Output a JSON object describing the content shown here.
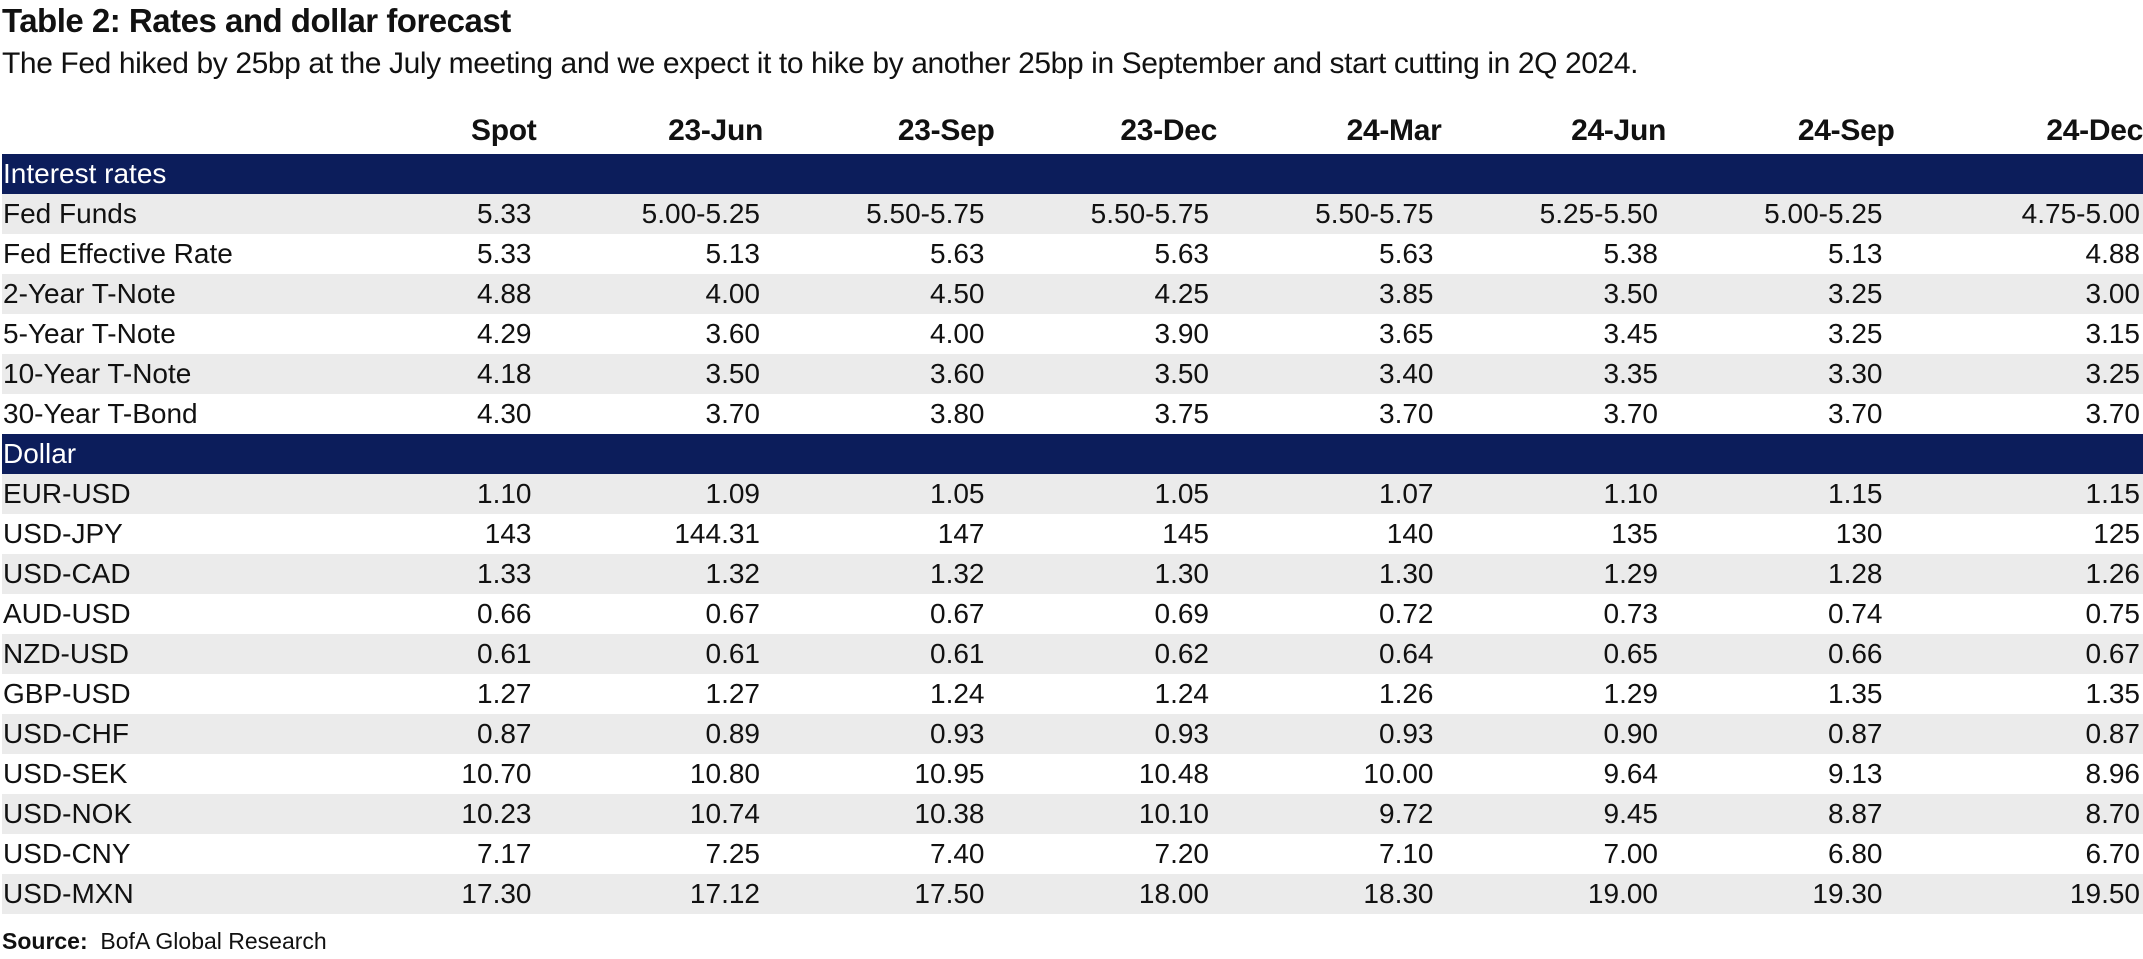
{
  "title": "Table 2: Rates and dollar forecast",
  "subtitle": "The Fed hiked by 25bp at the July meeting and we expect it to hike by another 25bp in September and start cutting in 2Q 2024.",
  "columns": [
    "Spot",
    "23-Jun",
    "23-Sep",
    "23-Dec",
    "24-Mar",
    "24-Jun",
    "24-Sep",
    "24-Dec"
  ],
  "sections": [
    {
      "name": "Interest rates",
      "rows": [
        {
          "label": "Fed Funds",
          "values": [
            "5.33",
            "5.00-5.25",
            "5.50-5.75",
            "5.50-5.75",
            "5.50-5.75",
            "5.25-5.50",
            "5.00-5.25",
            "4.75-5.00"
          ]
        },
        {
          "label": "Fed Effective Rate",
          "values": [
            "5.33",
            "5.13",
            "5.63",
            "5.63",
            "5.63",
            "5.38",
            "5.13",
            "4.88"
          ]
        },
        {
          "label": "2-Year T-Note",
          "values": [
            "4.88",
            "4.00",
            "4.50",
            "4.25",
            "3.85",
            "3.50",
            "3.25",
            "3.00"
          ]
        },
        {
          "label": "5-Year T-Note",
          "values": [
            "4.29",
            "3.60",
            "4.00",
            "3.90",
            "3.65",
            "3.45",
            "3.25",
            "3.15"
          ]
        },
        {
          "label": "10-Year T-Note",
          "values": [
            "4.18",
            "3.50",
            "3.60",
            "3.50",
            "3.40",
            "3.35",
            "3.30",
            "3.25"
          ]
        },
        {
          "label": "30-Year T-Bond",
          "values": [
            "4.30",
            "3.70",
            "3.80",
            "3.75",
            "3.70",
            "3.70",
            "3.70",
            "3.70"
          ]
        }
      ]
    },
    {
      "name": "Dollar",
      "rows": [
        {
          "label": "EUR-USD",
          "values": [
            "1.10",
            "1.09",
            "1.05",
            "1.05",
            "1.07",
            "1.10",
            "1.15",
            "1.15"
          ]
        },
        {
          "label": "USD-JPY",
          "values": [
            "143",
            "144.31",
            "147",
            "145",
            "140",
            "135",
            "130",
            "125"
          ]
        },
        {
          "label": "USD-CAD",
          "values": [
            "1.33",
            "1.32",
            "1.32",
            "1.30",
            "1.30",
            "1.29",
            "1.28",
            "1.26"
          ]
        },
        {
          "label": "AUD-USD",
          "values": [
            "0.66",
            "0.67",
            "0.67",
            "0.69",
            "0.72",
            "0.73",
            "0.74",
            "0.75"
          ]
        },
        {
          "label": "NZD-USD",
          "values": [
            "0.61",
            "0.61",
            "0.61",
            "0.62",
            "0.64",
            "0.65",
            "0.66",
            "0.67"
          ]
        },
        {
          "label": "GBP-USD",
          "values": [
            "1.27",
            "1.27",
            "1.24",
            "1.24",
            "1.26",
            "1.29",
            "1.35",
            "1.35"
          ]
        },
        {
          "label": "USD-CHF",
          "values": [
            "0.87",
            "0.89",
            "0.93",
            "0.93",
            "0.93",
            "0.90",
            "0.87",
            "0.87"
          ]
        },
        {
          "label": "USD-SEK",
          "values": [
            "10.70",
            "10.80",
            "10.95",
            "10.48",
            "10.00",
            "9.64",
            "9.13",
            "8.96"
          ]
        },
        {
          "label": "USD-NOK",
          "values": [
            "10.23",
            "10.74",
            "10.38",
            "10.10",
            "9.72",
            "9.45",
            "8.87",
            "8.70"
          ]
        },
        {
          "label": "USD-CNY",
          "values": [
            "7.17",
            "7.25",
            "7.40",
            "7.20",
            "7.10",
            "7.00",
            "6.80",
            "6.70"
          ]
        },
        {
          "label": "USD-MXN",
          "values": [
            "17.30",
            "17.12",
            "17.50",
            "18.00",
            "18.30",
            "19.00",
            "19.30",
            "19.50"
          ]
        }
      ]
    }
  ],
  "source": {
    "label": "Source:",
    "text": "BofA Global Research"
  },
  "colors": {
    "section_header_bg": "#0c1d5b",
    "row_shade": "#ebebeb"
  }
}
